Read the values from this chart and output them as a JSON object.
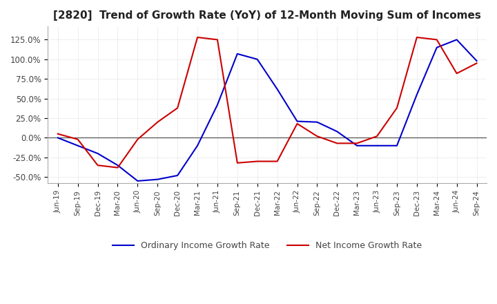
{
  "title": "[2820]  Trend of Growth Rate (YoY) of 12-Month Moving Sum of Incomes",
  "title_fontsize": 11,
  "ylim": [
    -0.58,
    1.42
  ],
  "yticks": [
    -0.5,
    -0.25,
    0.0,
    0.25,
    0.5,
    0.75,
    1.0,
    1.25
  ],
  "ytick_labels": [
    "-50.0%",
    "-25.0%",
    "0.0%",
    "25.0%",
    "50.0%",
    "75.0%",
    "100.0%",
    "125.0%"
  ],
  "x_labels": [
    "Jun-19",
    "Sep-19",
    "Dec-19",
    "Mar-20",
    "Jun-20",
    "Sep-20",
    "Dec-20",
    "Mar-21",
    "Jun-21",
    "Sep-21",
    "Dec-21",
    "Mar-22",
    "Jun-22",
    "Sep-22",
    "Dec-22",
    "Mar-23",
    "Jun-23",
    "Sep-23",
    "Dec-23",
    "Mar-24",
    "Jun-24",
    "Sep-24"
  ],
  "ordinary_income": [
    0.0,
    -0.1,
    -0.2,
    -0.35,
    -0.55,
    -0.53,
    -0.48,
    -0.1,
    0.42,
    1.07,
    1.0,
    0.62,
    0.21,
    0.2,
    0.08,
    -0.1,
    -0.1,
    -0.1,
    0.55,
    1.15,
    1.25,
    0.98
  ],
  "net_income": [
    0.05,
    -0.02,
    -0.35,
    -0.38,
    -0.02,
    0.2,
    0.38,
    1.28,
    1.25,
    -0.32,
    -0.3,
    -0.3,
    0.18,
    0.02,
    -0.07,
    -0.07,
    0.02,
    0.38,
    1.28,
    1.25,
    0.82,
    0.95
  ],
  "ordinary_color": "#0000cc",
  "net_color": "#cc0000",
  "line_width": 1.5,
  "background_color": "#ffffff",
  "grid_color": "#cccccc",
  "grid_style": "dotted",
  "legend_ordinary": "Ordinary Income Growth Rate",
  "legend_net": "Net Income Growth Rate"
}
